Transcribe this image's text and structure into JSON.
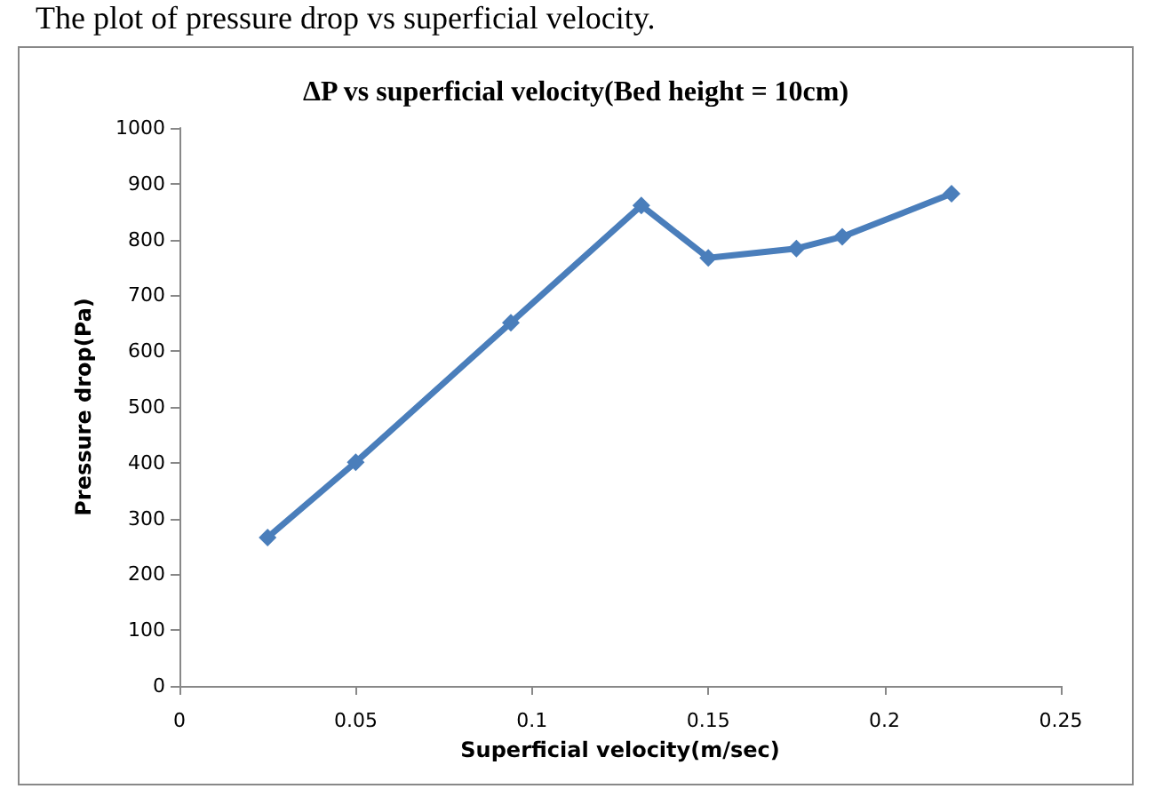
{
  "chart_data": {
    "type": "line",
    "title": "ΔP vs superficial velocity(Bed height = 10cm)",
    "xlabel": "Superficial velocity(m/sec)",
    "ylabel": "Pressure drop(Pa)",
    "annotations": [
      "The plot of pressure drop vs superficial velocity."
    ],
    "x": [
      0.025,
      0.05,
      0.094,
      0.131,
      0.15,
      0.175,
      0.188,
      0.219
    ],
    "series": [
      {
        "color": "#4a7ebb",
        "values": [
          266,
          401,
          651,
          861,
          767,
          784,
          805,
          882
        ]
      }
    ],
    "xlim": [
      0,
      0.25
    ],
    "xticks": [
      0,
      0.05,
      0.1,
      0.15,
      0.2,
      0.25
    ],
    "ylim": [
      0,
      1000
    ],
    "yticks": [
      0,
      100,
      200,
      300,
      400,
      500,
      600,
      700,
      800,
      900,
      1000
    ],
    "grid": false,
    "marker": "diamond",
    "line_style": "solid"
  }
}
